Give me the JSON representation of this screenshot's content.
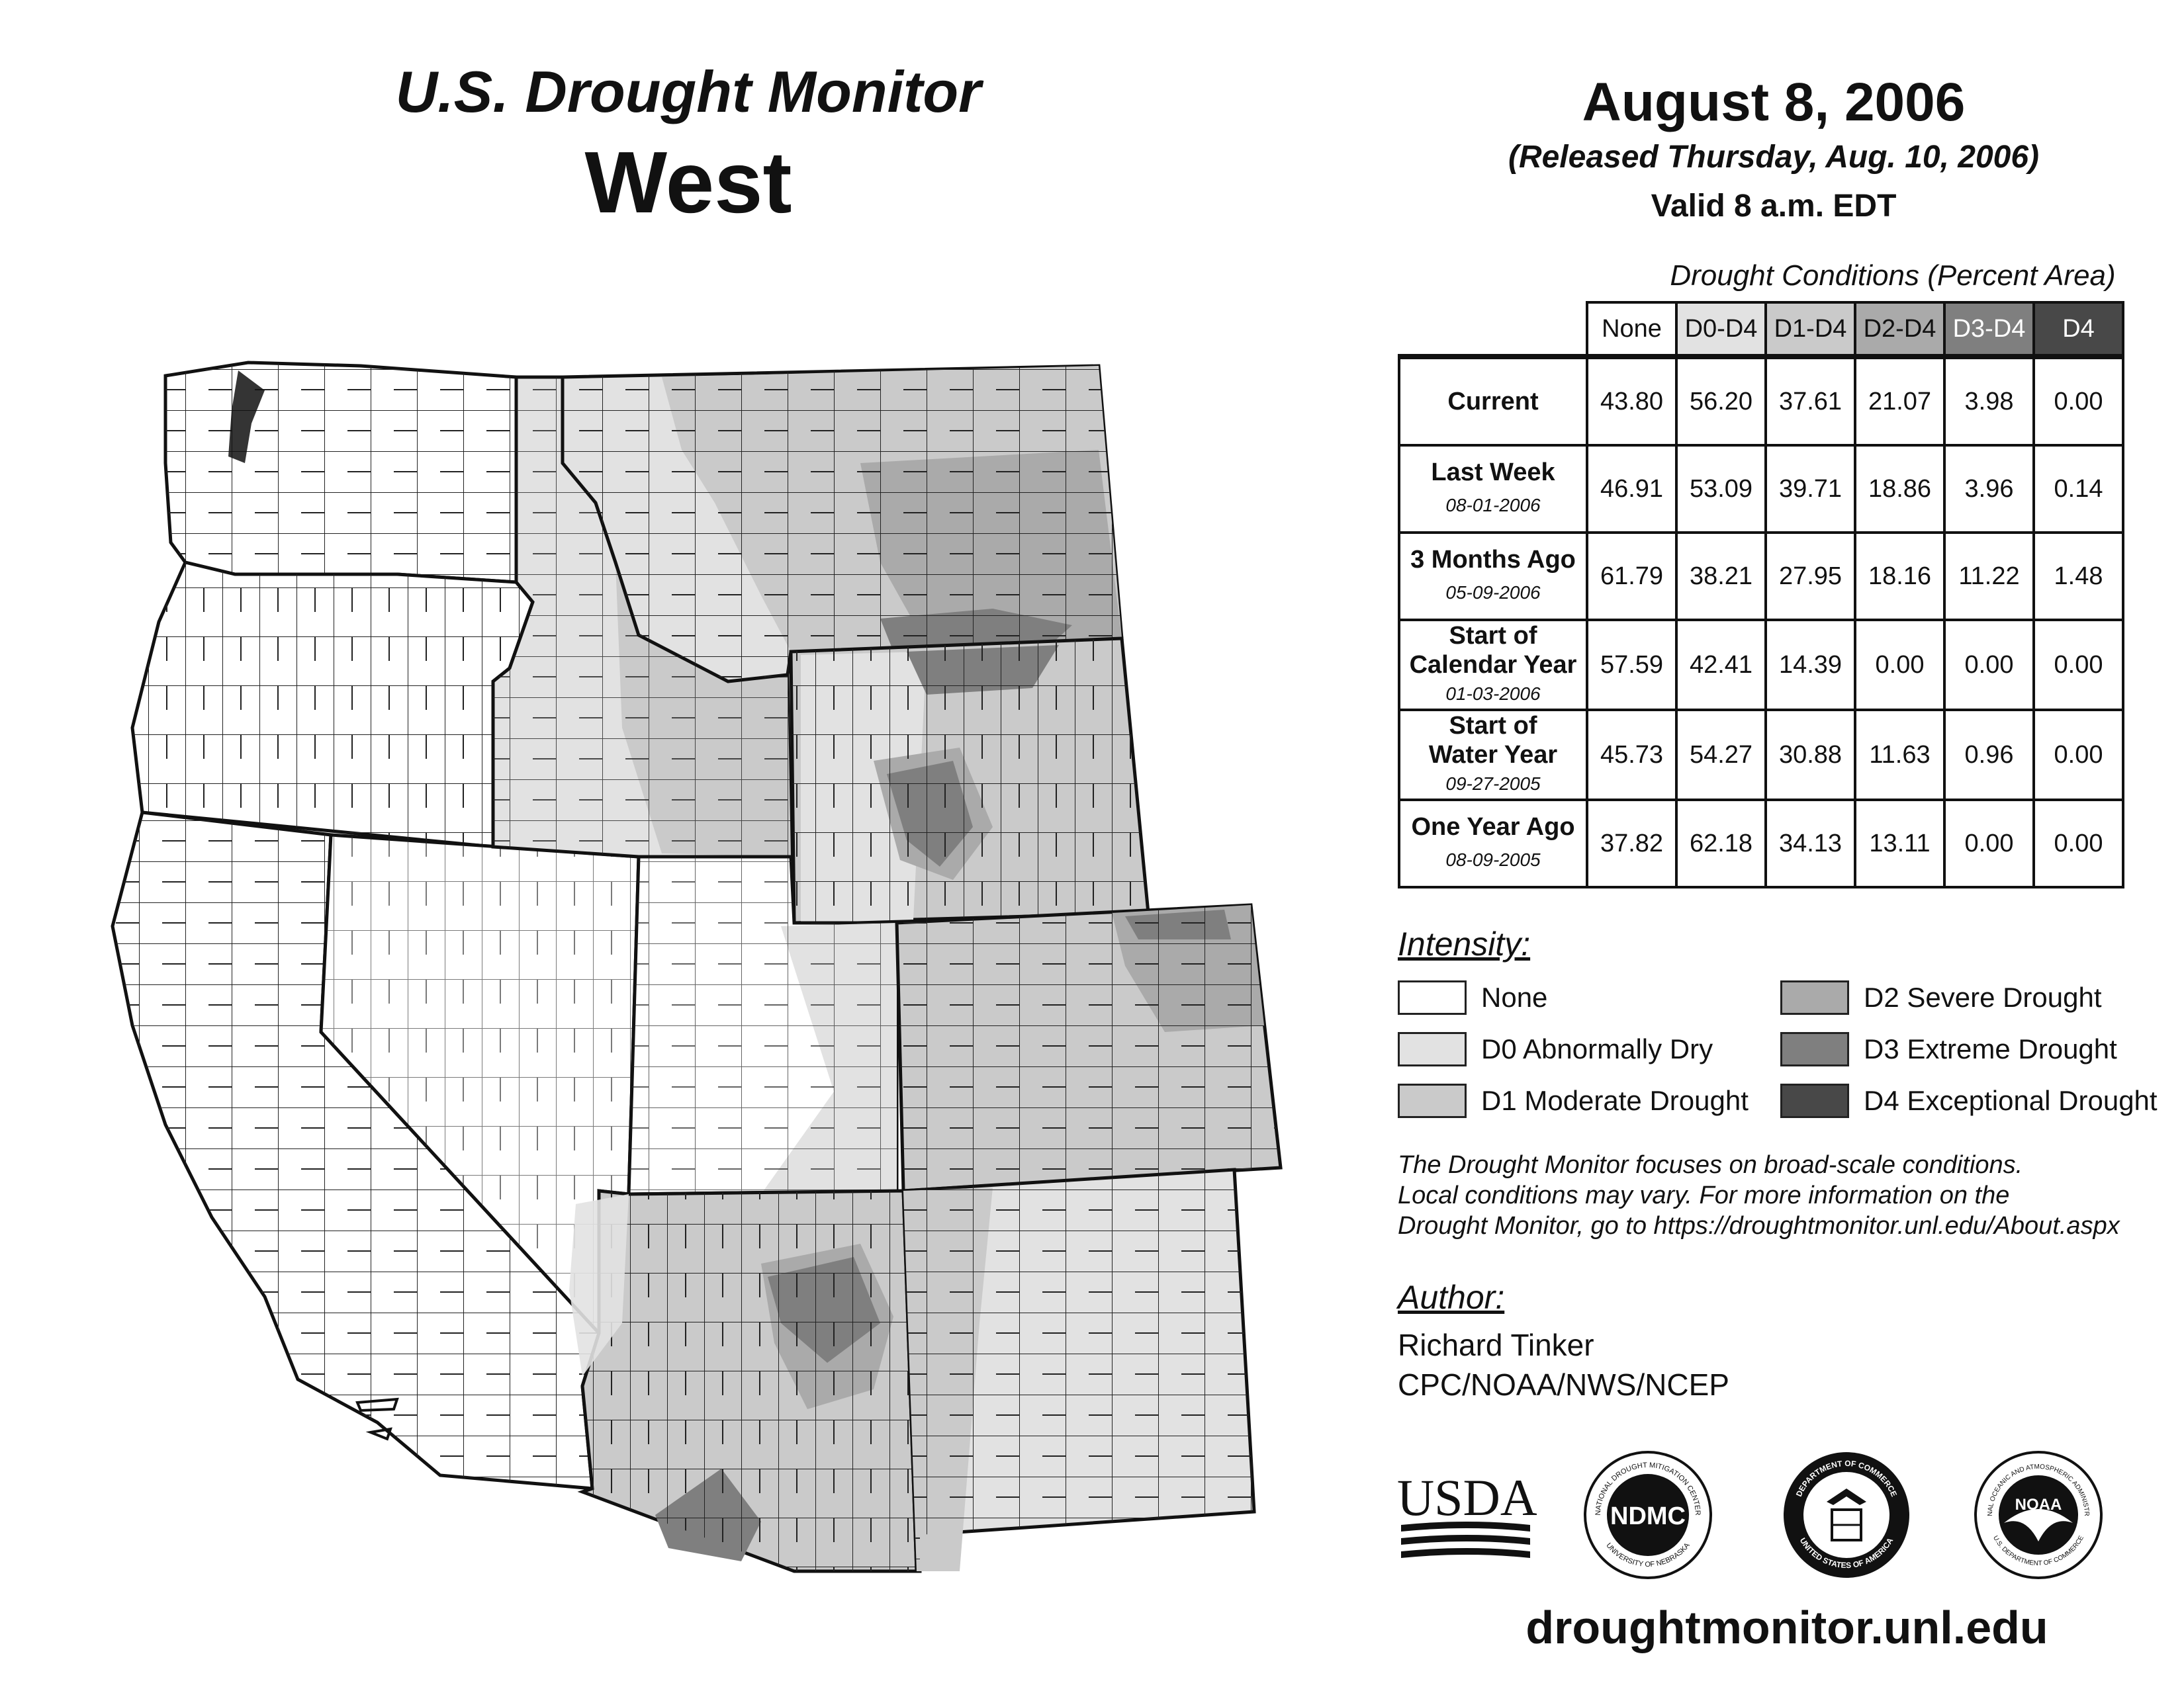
{
  "header": {
    "title": "U.S. Drought Monitor",
    "region": "West",
    "date": "August 8, 2006",
    "released": "(Released Thursday, Aug. 10, 2006)",
    "valid": "Valid 8 a.m. EDT"
  },
  "table": {
    "title": "Drought Conditions (Percent Area)",
    "columns": [
      "None",
      "D0-D4",
      "D1-D4",
      "D2-D4",
      "D3-D4",
      "D4"
    ],
    "rows": [
      {
        "label_lines": [
          "Current"
        ],
        "date": "",
        "values": [
          "43.80",
          "56.20",
          "37.61",
          "21.07",
          "3.98",
          "0.00"
        ]
      },
      {
        "label_lines": [
          "Last Week"
        ],
        "date": "08-01-2006",
        "values": [
          "46.91",
          "53.09",
          "39.71",
          "18.86",
          "3.96",
          "0.14"
        ]
      },
      {
        "label_lines": [
          "3 Months Ago"
        ],
        "date": "05-09-2006",
        "values": [
          "61.79",
          "38.21",
          "27.95",
          "18.16",
          "11.22",
          "1.48"
        ]
      },
      {
        "label_lines": [
          "Start of",
          "Calendar Year"
        ],
        "date": "01-03-2006",
        "values": [
          "57.59",
          "42.41",
          "14.39",
          "0.00",
          "0.00",
          "0.00"
        ]
      },
      {
        "label_lines": [
          "Start of",
          "Water Year"
        ],
        "date": "09-27-2005",
        "values": [
          "45.73",
          "54.27",
          "30.88",
          "11.63",
          "0.96",
          "0.00"
        ]
      },
      {
        "label_lines": [
          "One Year Ago"
        ],
        "date": "08-09-2005",
        "values": [
          "37.82",
          "62.18",
          "34.13",
          "13.11",
          "0.00",
          "0.00"
        ]
      }
    ]
  },
  "legend": {
    "title": "Intensity:",
    "items": [
      {
        "label": "None",
        "color": "#ffffff"
      },
      {
        "label": "D0 Abnormally Dry",
        "color": "#e2e2e2"
      },
      {
        "label": "D1 Moderate Drought",
        "color": "#cacaca"
      },
      {
        "label": "D2 Severe Drought",
        "color": "#aaaaaa"
      },
      {
        "label": "D3 Extreme Drought",
        "color": "#7f7f7f"
      },
      {
        "label": "D4 Exceptional Drought",
        "color": "#484848"
      }
    ]
  },
  "note": {
    "lines": [
      "The Drought Monitor focuses on broad-scale conditions.",
      "Local conditions may vary. For more information on the",
      "Drought Monitor, go to https://droughtmonitor.unl.edu/About.aspx"
    ]
  },
  "author": {
    "title": "Author:",
    "name": "Richard Tinker",
    "org": "CPC/NOAA/NWS/NCEP"
  },
  "logos": {
    "usda": "USDA",
    "ndmc": "NDMC",
    "ndmc_ring_top": "NATIONAL DROUGHT MITIGATION CENTER",
    "ndmc_ring_bottom": "UNIVERSITY OF NEBRASKA",
    "commerce_ring_top": "DEPARTMENT OF COMMERCE",
    "commerce_ring_bottom": "UNITED STATES OF AMERICA",
    "noaa": "NOAA",
    "noaa_ring_top": "NATIONAL OCEANIC AND ATMOSPHERIC ADMINISTRATION",
    "noaa_ring_bottom": "U.S. DEPARTMENT OF COMMERCE"
  },
  "footer": {
    "url": "droughtmonitor.unl.edu"
  },
  "colors": {
    "none": "#ffffff",
    "d0": "#e2e2e2",
    "d1": "#cacaca",
    "d2": "#aaaaaa",
    "d3": "#7f7f7f",
    "d4": "#484848"
  }
}
